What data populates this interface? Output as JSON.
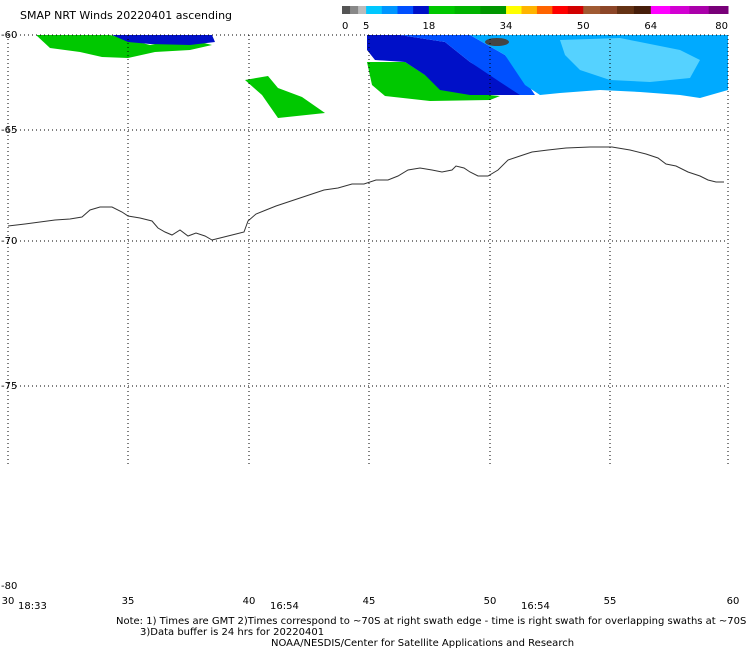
{
  "title": "SMAP NRT Winds 20220401 ascending",
  "color_scale": {
    "tick_labels": [
      "0",
      "5",
      "18",
      "34",
      "50",
      "64",
      "80"
    ],
    "bands": [
      {
        "from": 0,
        "to": 5,
        "colors": [
          "#555555",
          "#888888",
          "#bbbbbb"
        ]
      },
      {
        "from": 5,
        "to": 18,
        "colors": [
          "#00c8ff",
          "#0096ff",
          "#0050ff",
          "#0010c8"
        ]
      },
      {
        "from": 18,
        "to": 34,
        "colors": [
          "#00c800",
          "#00b400",
          "#009600"
        ]
      },
      {
        "from": 34,
        "to": 50,
        "colors": [
          "#ffff00",
          "#ffb400",
          "#ff6400",
          "#ff0000",
          "#d20000"
        ]
      },
      {
        "from": 50,
        "to": 64,
        "colors": [
          "#a05a32",
          "#8c4628",
          "#643214",
          "#461e0a"
        ]
      },
      {
        "from": 64,
        "to": 80,
        "colors": [
          "#ff00ff",
          "#d200d2",
          "#aa00aa",
          "#780078"
        ]
      }
    ]
  },
  "axes": {
    "lat_labels": [
      "-60",
      "-65",
      "-70",
      "-75",
      "-80"
    ],
    "lon_labels": [
      "30",
      "35",
      "40",
      "45",
      "50",
      "55",
      "60"
    ],
    "time_labels": [
      "18:33",
      "16:54",
      "16:54"
    ]
  },
  "notes": [
    "Note: 1) Times are GMT 2)Times correspond to ~70S at right swath edge - time is right swath for overlapping swaths at ~70S",
    "3)Data buffer is 24 hrs for 20220401",
    "NOAA/NESDIS/Center for Satellite Applications and Research"
  ],
  "wind_colors": {
    "green": "#00c800",
    "dark_blue": "#0010c8",
    "mid_blue": "#0050ff",
    "light_blue": "#00aaff",
    "pale_blue": "#55d2ff",
    "land_dot": "#444444"
  }
}
